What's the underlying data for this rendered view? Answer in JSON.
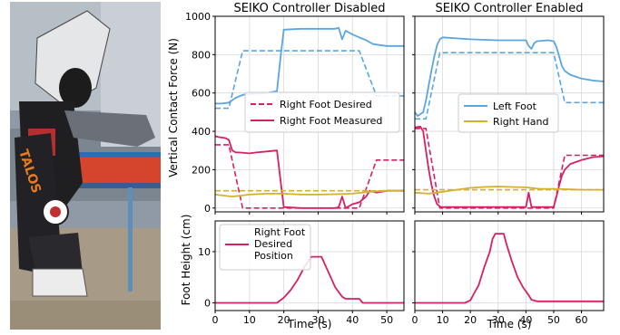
{
  "figure": {
    "ylabel_force": "Vertical Contact Force (N)",
    "ylabel_height": "Foot Height (cm)",
    "xlabel": "Time (s)"
  },
  "photo": {
    "alt": "",
    "logo_text": "TALOS"
  },
  "colors": {
    "right_foot": "#d62066",
    "left_foot": "#5aa6e0",
    "right_hand": "#d4b030",
    "grid": "#d9d9d9",
    "axis": "#000000"
  },
  "chart_data": [
    {
      "type": "line",
      "title": "SEIKO Controller Disabled",
      "xlabel": "Time (s)",
      "ylabel": "Vertical Contact Force (N)",
      "xlim": [
        0,
        55
      ],
      "ylim": [
        -20,
        1000
      ],
      "xticks": [
        0,
        10,
        20,
        30,
        40,
        50
      ],
      "yticks": [
        0,
        200,
        400,
        600,
        800,
        1000
      ],
      "grid": true,
      "legend_position": "center-right",
      "legend": [
        "Right Foot Desired",
        "Right Foot Measured"
      ],
      "series": [
        {
          "name": "Right Foot Desired",
          "color": "#d62066",
          "style": "dashed",
          "x": [
            0,
            2,
            4,
            8,
            10,
            18,
            36,
            42,
            47,
            55
          ],
          "y": [
            330,
            330,
            330,
            0,
            0,
            0,
            0,
            0,
            250,
            250
          ]
        },
        {
          "name": "Right Foot Measured",
          "color": "#d62066",
          "style": "solid",
          "x": [
            0,
            1,
            3,
            4,
            5,
            6,
            7,
            10,
            12,
            15,
            18,
            19,
            20,
            25,
            30,
            35,
            36,
            37,
            38,
            40,
            42,
            44,
            45,
            47,
            50,
            55
          ],
          "y": [
            375,
            370,
            365,
            355,
            300,
            290,
            290,
            285,
            290,
            295,
            300,
            150,
            5,
            0,
            0,
            0,
            5,
            60,
            0,
            20,
            30,
            60,
            90,
            80,
            90,
            90
          ]
        },
        {
          "name": "Left Foot Desired",
          "color": "#5aa6e0",
          "style": "dashed",
          "x": [
            0,
            2,
            4,
            8,
            10,
            18,
            36,
            42,
            47,
            55
          ],
          "y": [
            520,
            520,
            520,
            820,
            820,
            820,
            820,
            820,
            585,
            585
          ]
        },
        {
          "name": "Left Foot Measured",
          "color": "#5aa6e0",
          "style": "solid",
          "x": [
            0,
            2,
            4,
            6,
            8,
            10,
            15,
            18,
            19,
            20,
            25,
            30,
            35,
            36,
            37,
            38,
            40,
            42,
            44,
            46,
            48,
            50,
            55
          ],
          "y": [
            545,
            545,
            550,
            575,
            590,
            595,
            600,
            610,
            780,
            930,
            935,
            935,
            935,
            940,
            880,
            925,
            905,
            890,
            875,
            855,
            850,
            845,
            845
          ]
        },
        {
          "name": "Right Hand Desired",
          "color": "#d4b030",
          "style": "dashed",
          "x": [
            0,
            55
          ],
          "y": [
            90,
            90
          ]
        },
        {
          "name": "Right Hand Measured",
          "color": "#d4b030",
          "style": "solid",
          "x": [
            0,
            5,
            10,
            15,
            20,
            25,
            30,
            35,
            40,
            45,
            50,
            55
          ],
          "y": [
            70,
            60,
            70,
            75,
            75,
            70,
            70,
            72,
            75,
            85,
            90,
            92
          ]
        }
      ]
    },
    {
      "type": "line",
      "title": "SEIKO Controller Enabled",
      "xlabel": "Time (s)",
      "ylabel": "",
      "xlim": [
        0,
        68
      ],
      "ylim": [
        -20,
        1000
      ],
      "xticks": [
        0,
        10,
        20,
        30,
        40,
        50,
        60
      ],
      "yticks": [
        0,
        200,
        400,
        600,
        800,
        1000
      ],
      "grid": true,
      "legend_position": "center-right",
      "legend": [
        "Left Foot",
        "Right Hand"
      ],
      "series": [
        {
          "name": "Right Foot Desired",
          "color": "#d62066",
          "style": "dashed",
          "x": [
            0,
            2,
            4,
            9,
            11,
            50,
            54,
            68
          ],
          "y": [
            415,
            415,
            415,
            0,
            0,
            0,
            275,
            275
          ]
        },
        {
          "name": "Right Foot Measured",
          "color": "#d62066",
          "style": "solid",
          "x": [
            0,
            2,
            3,
            4,
            5,
            6,
            7,
            8,
            9,
            10,
            11,
            20,
            30,
            40,
            41,
            42,
            44,
            50,
            51,
            52,
            53,
            54,
            56,
            60,
            64,
            68
          ],
          "y": [
            420,
            425,
            400,
            300,
            200,
            120,
            60,
            20,
            8,
            4,
            5,
            5,
            5,
            5,
            80,
            5,
            5,
            5,
            60,
            120,
            170,
            200,
            230,
            250,
            265,
            270
          ]
        },
        {
          "name": "Left Foot Desired",
          "color": "#5aa6e0",
          "style": "dashed",
          "x": [
            0,
            2,
            4,
            9,
            11,
            50,
            54,
            68
          ],
          "y": [
            465,
            465,
            465,
            810,
            810,
            810,
            550,
            550
          ]
        },
        {
          "name": "Left Foot",
          "color": "#5aa6e0",
          "style": "solid",
          "x": [
            0,
            1,
            2,
            3,
            4,
            5,
            6,
            7,
            8,
            9,
            10,
            20,
            30,
            40,
            41,
            42,
            43,
            44,
            48,
            50,
            51,
            52,
            53,
            54,
            56,
            60,
            64,
            68
          ],
          "y": [
            500,
            480,
            490,
            500,
            560,
            640,
            720,
            790,
            850,
            880,
            890,
            880,
            875,
            875,
            845,
            830,
            860,
            870,
            875,
            870,
            840,
            790,
            740,
            715,
            695,
            675,
            665,
            660
          ]
        },
        {
          "name": "Right Hand Desired",
          "color": "#d4b030",
          "style": "dashed",
          "x": [
            0,
            68
          ],
          "y": [
            95,
            95
          ]
        },
        {
          "name": "Right Hand",
          "color": "#d4b030",
          "style": "solid",
          "x": [
            0,
            5,
            10,
            15,
            20,
            25,
            30,
            35,
            40,
            45,
            50,
            55,
            60,
            68
          ],
          "y": [
            80,
            75,
            85,
            95,
            105,
            110,
            112,
            110,
            108,
            100,
            100,
            98,
            95,
            95
          ]
        }
      ]
    },
    {
      "type": "line",
      "title": "",
      "xlabel": "Time (s)",
      "ylabel": "Foot Height (cm)",
      "xlim": [
        0,
        55
      ],
      "ylim": [
        -1.5,
        16
      ],
      "xticks": [
        0,
        10,
        20,
        30,
        40,
        50
      ],
      "yticks": [
        0,
        10
      ],
      "grid": true,
      "legend_position": "top-left",
      "legend": [
        "Right Foot Desired Position"
      ],
      "series": [
        {
          "name": "Right Foot Desired Position",
          "color": "#d62066",
          "style": "solid",
          "x": [
            0,
            18,
            20,
            22,
            24,
            26,
            28,
            31,
            33,
            35,
            37,
            38,
            42,
            43,
            55
          ],
          "y": [
            0,
            0,
            1,
            2.5,
            4.5,
            7,
            9,
            9,
            6,
            3,
            1.2,
            0.8,
            0.8,
            0,
            0
          ]
        }
      ]
    },
    {
      "type": "line",
      "title": "",
      "xlabel": "Time (s)",
      "ylabel": "",
      "xlim": [
        0,
        68
      ],
      "ylim": [
        -1.5,
        16
      ],
      "xticks": [
        0,
        10,
        20,
        30,
        40,
        50,
        60
      ],
      "yticks": [
        0,
        10
      ],
      "grid": true,
      "legend_position": "",
      "legend": [],
      "series": [
        {
          "name": "Right Foot Desired Position",
          "color": "#d62066",
          "style": "solid",
          "x": [
            0,
            18,
            20,
            21,
            23,
            25,
            27,
            28,
            29,
            32,
            33,
            35,
            37,
            39,
            41,
            42,
            44,
            68
          ],
          "y": [
            0,
            0,
            0.5,
            1.5,
            3.5,
            7,
            10,
            12.5,
            13.5,
            13.5,
            11.5,
            8,
            5,
            3,
            1.5,
            0.6,
            0.3,
            0.3
          ]
        }
      ]
    }
  ]
}
